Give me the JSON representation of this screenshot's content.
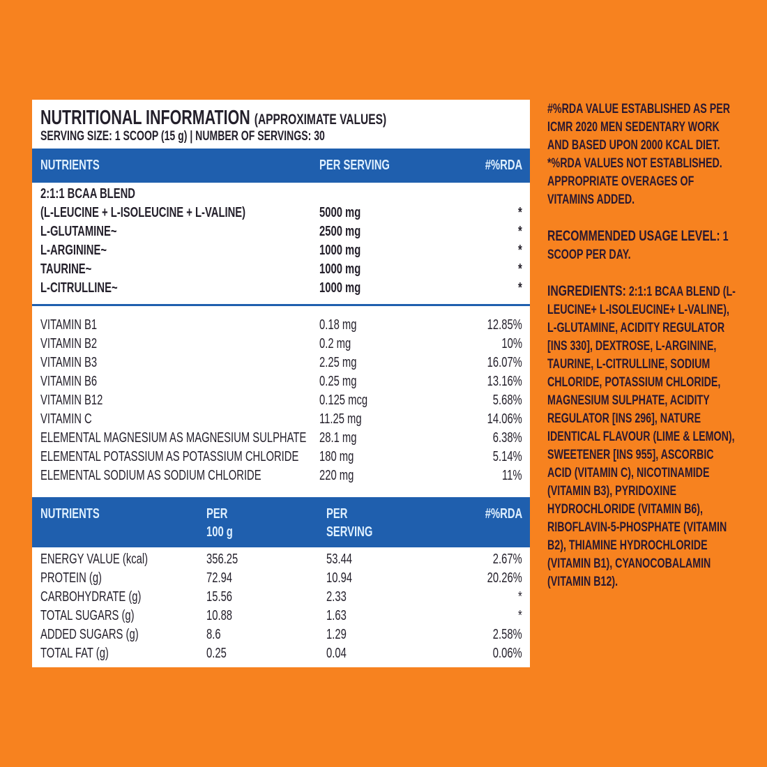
{
  "title": "NUTRITIONAL INFORMATION",
  "title_note": "(APPROXIMATE VALUES)",
  "serving": "SERVING SIZE: 1 SCOOP (15 g) | NUMBER OF SERVINGS: 30",
  "header1": {
    "nutrients": "NUTRIENTS",
    "per_serving": "PER SERVING",
    "rda": "#%RDA"
  },
  "blend_label": "2:1:1 BCAA BLEND",
  "amino": [
    {
      "name": "(L-LEUCINE + L-ISOLEUCINE + L-VALINE)",
      "serving": "5000 mg",
      "rda": "*"
    },
    {
      "name": "L-GLUTAMINE~",
      "serving": "2500 mg",
      "rda": "*"
    },
    {
      "name": "L-ARGININE~",
      "serving": "1000 mg",
      "rda": "*"
    },
    {
      "name": "TAURINE~",
      "serving": "1000 mg",
      "rda": "*"
    },
    {
      "name": "L-CITRULLINE~",
      "serving": "1000 mg",
      "rda": "*"
    }
  ],
  "vitamins": [
    {
      "name": "VITAMIN B1",
      "serving": "0.18 mg",
      "rda": "12.85%"
    },
    {
      "name": "VITAMIN B2",
      "serving": "0.2 mg",
      "rda": "10%"
    },
    {
      "name": "VITAMIN B3",
      "serving": "2.25 mg",
      "rda": "16.07%"
    },
    {
      "name": "VITAMIN B6",
      "serving": "0.25 mg",
      "rda": "13.16%"
    },
    {
      "name": "VITAMIN B12",
      "serving": "0.125 mcg",
      "rda": "5.68%"
    },
    {
      "name": "VITAMIN C",
      "serving": "11.25 mg",
      "rda": "14.06%"
    },
    {
      "name": "ELEMENTAL MAGNESIUM AS MAGNESIUM SULPHATE",
      "serving": "28.1 mg",
      "rda": "6.38%"
    },
    {
      "name": "ELEMENTAL POTASSIUM AS POTASSIUM CHLORIDE",
      "serving": "180 mg",
      "rda": "5.14%"
    },
    {
      "name": "ELEMENTAL SODIUM AS SODIUM CHLORIDE",
      "serving": "220 mg",
      "rda": "11%"
    }
  ],
  "header2": {
    "nutrients": "NUTRIENTS",
    "per100_1": "PER",
    "per100_2": "100 g",
    "serving_1": "PER",
    "serving_2": "SERVING",
    "rda": "#%RDA"
  },
  "macros": [
    {
      "name": "ENERGY VALUE (kcal)",
      "per100": "356.25",
      "serving": "53.44",
      "rda": "2.67%"
    },
    {
      "name": "PROTEIN (g)",
      "per100": "72.94",
      "serving": "10.94",
      "rda": "20.26%"
    },
    {
      "name": "CARBOHYDRATE (g)",
      "per100": "15.56",
      "serving": "2.33",
      "rda": "*"
    },
    {
      "name": "TOTAL SUGARS (g)",
      "per100": "10.88",
      "serving": "1.63",
      "rda": "*"
    },
    {
      "name": "ADDED SUGARS (g)",
      "per100": "8.6",
      "serving": "1.29",
      "rda": "2.58%"
    },
    {
      "name": "TOTAL FAT (g)",
      "per100": "0.25",
      "serving": "0.04",
      "rda": "0.06%"
    }
  ],
  "side": {
    "rda_note": "#%RDA VALUE ESTABLISHED AS PER ICMR 2020 MEN SEDENTARY WORK AND BASED UPON 2000 KCAL DIET. *%RDA VALUES NOT ESTABLISHED. APPROPRIATE OVERAGES OF VITAMINS ADDED.",
    "usage_label": "RECOMMENDED USAGE LEVEL:",
    "usage_text": "1 SCOOP PER DAY.",
    "ingredients_label": "INGREDIENTS:",
    "ingredients_text": "2:1:1 BCAA BLEND (L-LEUCINE+ L-ISOLEUCINE+ L-VALINE), L-GLUTAMINE, ACIDITY REGULATOR [INS 330], DEXTROSE, L-ARGININE, TAURINE, L-CITRULLINE, SODIUM CHLORIDE, POTASSIUM CHLORIDE, MAGNESIUM SULPHATE, ACIDITY REGULATOR [INS 296], NATURE IDENTICAL FLAVOUR (LIME & LEMON), SWEETENER [INS 955], ASCORBIC ACID (VITAMIN C), NICOTINAMIDE (VITAMIN B3), PYRIDOXINE HYDROCHLORIDE (VITAMIN B6), RIBOFLAVIN-5-PHOSPHATE (VITAMIN B2), THIAMINE HYDROCHLORIDE (VITAMIN B1), CYANOCOBALAMIN (VITAMIN B12)."
  },
  "colors": {
    "background": "#f7821f",
    "header_blue": "#1f5fae"
  }
}
